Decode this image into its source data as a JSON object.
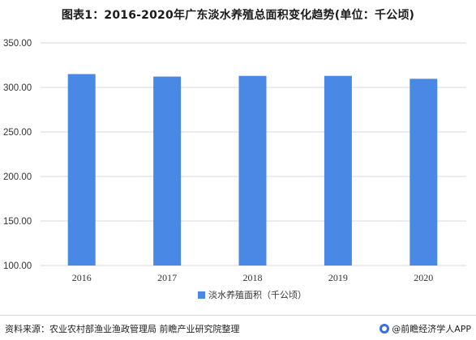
{
  "title": "图表1：2016-2020年广东淡水养殖总面积变化趋势(单位：千公顷)",
  "footer": {
    "source": "资料来源：农业农村部渔业渔政管理局 前瞻产业研究院整理",
    "brand": "@前瞻经济学人APP"
  },
  "colors": {
    "bar": "#4a88e6",
    "grid": "#d9d9d9"
  },
  "chart_data": {
    "type": "bar",
    "categories": [
      "2016",
      "2017",
      "2018",
      "2019",
      "2020"
    ],
    "series": [
      {
        "name": "淡水养殖面积（千公顷）",
        "values": [
          315.0,
          312.2,
          313.0,
          313.0,
          309.7
        ]
      }
    ],
    "ylim": [
      100,
      350
    ],
    "yticks": [
      "100.00",
      "150.00",
      "200.00",
      "250.00",
      "300.00",
      "350.00"
    ],
    "grid": true,
    "legend": "bottom-center"
  }
}
